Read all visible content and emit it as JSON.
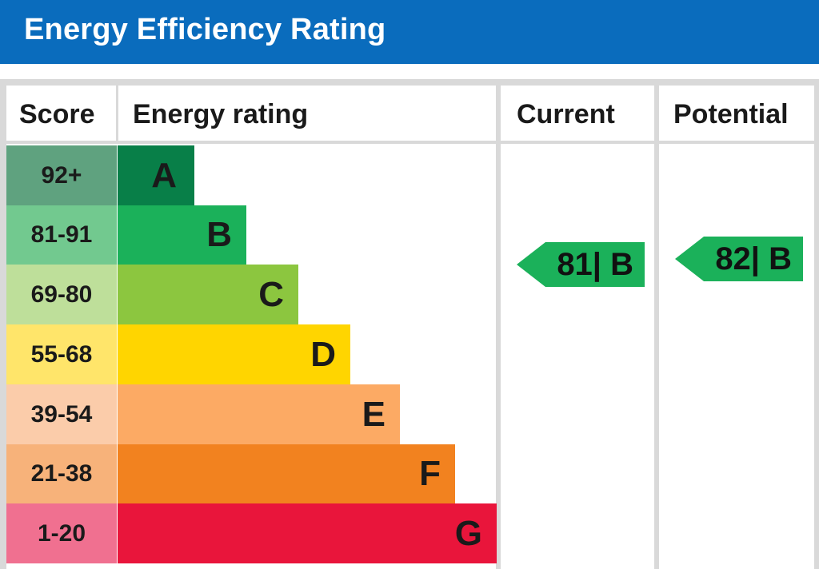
{
  "header": {
    "title": "Energy Efficiency Rating"
  },
  "columns": {
    "score": "Score",
    "rating": "Energy rating",
    "current": "Current",
    "potential": "Potential"
  },
  "colors": {
    "header_bg": "#0a6cbd",
    "bands": [
      "#087f48",
      "#1bb15a",
      "#8cc63f",
      "#ffd500",
      "#fcaa64",
      "#f2821f",
      "#e9153b"
    ],
    "score_bg": [
      "#5fa27f",
      "#72c98f",
      "#bedf9a",
      "#ffe56a",
      "#fbccaa",
      "#f7b27a",
      "#f07090"
    ],
    "arrow": "#1bb15a"
  },
  "chart_data": {
    "type": "bar",
    "title": "Energy Efficiency Rating",
    "bands": [
      {
        "score": "92+",
        "letter": "A",
        "min": 92,
        "max": 100
      },
      {
        "score": "81-91",
        "letter": "B",
        "min": 81,
        "max": 91
      },
      {
        "score": "69-80",
        "letter": "C",
        "min": 69,
        "max": 80
      },
      {
        "score": "55-68",
        "letter": "D",
        "min": 55,
        "max": 68
      },
      {
        "score": "39-54",
        "letter": "E",
        "min": 39,
        "max": 54
      },
      {
        "score": "21-38",
        "letter": "F",
        "min": 21,
        "max": 38
      },
      {
        "score": "1-20",
        "letter": "G",
        "min": 1,
        "max": 20
      }
    ],
    "current": {
      "value": 81,
      "band": "B",
      "label": "81| B"
    },
    "potential": {
      "value": 82,
      "band": "B",
      "label": "82| B"
    }
  }
}
